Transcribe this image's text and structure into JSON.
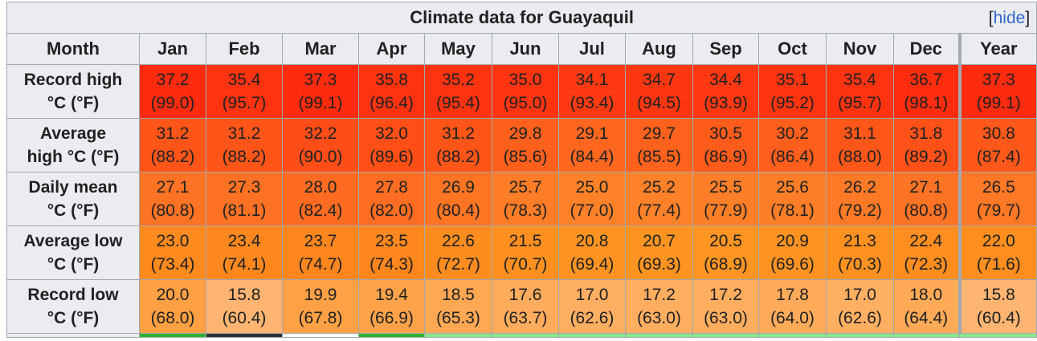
{
  "table": {
    "title": "Climate data for Guayaquil",
    "hide_bracket_open": "[",
    "hide_label": "hide",
    "hide_bracket_close": "]",
    "header_label": "Month",
    "months": [
      "Jan",
      "Feb",
      "Mar",
      "Apr",
      "May",
      "Jun",
      "Jul",
      "Aug",
      "Sep",
      "Oct",
      "Nov",
      "Dec",
      "Year"
    ],
    "rows": [
      {
        "label_line1": "Record high",
        "label_line2": "°C (°F)",
        "c": [
          "37.2",
          "35.4",
          "37.3",
          "35.8",
          "35.2",
          "35.0",
          "34.1",
          "34.7",
          "34.4",
          "35.1",
          "35.4",
          "36.7",
          "37.3"
        ],
        "f": [
          "(99.0)",
          "(95.7)",
          "(99.1)",
          "(96.4)",
          "(95.4)",
          "(95.0)",
          "(93.4)",
          "(94.5)",
          "(93.9)",
          "(95.2)",
          "(95.7)",
          "(98.1)",
          "(99.1)"
        ],
        "colors": [
          "#ff2b0e",
          "#ff3310",
          "#ff2b0e",
          "#ff3310",
          "#ff3310",
          "#ff3511",
          "#ff3a12",
          "#ff3711",
          "#ff3812",
          "#ff3510",
          "#ff3310",
          "#ff2d0e",
          "#ff2b0e"
        ]
      },
      {
        "label_line1": "Average",
        "label_line2": "high °C (°F)",
        "c": [
          "31.2",
          "31.2",
          "32.2",
          "32.0",
          "31.2",
          "29.8",
          "29.1",
          "29.7",
          "30.5",
          "30.2",
          "31.1",
          "31.8",
          "30.8"
        ],
        "f": [
          "(88.2)",
          "(88.2)",
          "(90.0)",
          "(89.6)",
          "(88.2)",
          "(85.6)",
          "(84.4)",
          "(85.5)",
          "(86.9)",
          "(86.4)",
          "(88.0)",
          "(89.2)",
          "(87.4)"
        ],
        "colors": [
          "#ff5519",
          "#ff5519",
          "#ff4d17",
          "#ff4f17",
          "#ff5519",
          "#ff611d",
          "#ff671f",
          "#ff621d",
          "#ff5b1b",
          "#ff5e1c",
          "#ff5619",
          "#ff5118",
          "#ff581a"
        ]
      },
      {
        "label_line1": "Daily mean",
        "label_line2": "°C (°F)",
        "c": [
          "27.1",
          "27.3",
          "28.0",
          "27.8",
          "26.9",
          "25.7",
          "25.0",
          "25.2",
          "25.5",
          "25.6",
          "26.2",
          "27.1",
          "26.5"
        ],
        "f": [
          "(80.8)",
          "(81.1)",
          "(82.4)",
          "(82.0)",
          "(80.4)",
          "(78.3)",
          "(77.0)",
          "(77.4)",
          "(77.9)",
          "(78.1)",
          "(79.2)",
          "(80.8)",
          "(79.7)"
        ],
        "colors": [
          "#ff7324",
          "#ff7223",
          "#ff6c21",
          "#ff6d22",
          "#ff7524",
          "#ff7d27",
          "#ff8229",
          "#ff8128",
          "#ff7f28",
          "#ff7e27",
          "#ff7a26",
          "#ff7324",
          "#ff7825"
        ]
      },
      {
        "label_line1": "Average low",
        "label_line2": "°C (°F)",
        "c": [
          "23.0",
          "23.4",
          "23.7",
          "23.5",
          "22.6",
          "21.5",
          "20.8",
          "20.7",
          "20.5",
          "20.9",
          "21.3",
          "22.4",
          "22.0"
        ],
        "f": [
          "(73.4)",
          "(74.1)",
          "(74.7)",
          "(74.3)",
          "(72.7)",
          "(70.7)",
          "(69.4)",
          "(69.3)",
          "(68.9)",
          "(69.6)",
          "(70.3)",
          "(72.3)",
          "(71.6)"
        ],
        "colors": [
          "#ff8a1e",
          "#ff881e",
          "#ff861d",
          "#ff871d",
          "#ff8c1f",
          "#ff9020",
          "#ff9321",
          "#ff9421",
          "#ff9522",
          "#ff9321",
          "#ff9120",
          "#ff8d1f",
          "#ff8e1f"
        ]
      },
      {
        "label_line1": "Record low",
        "label_line2": "°C (°F)",
        "c": [
          "20.0",
          "15.8",
          "19.9",
          "19.4",
          "18.5",
          "17.6",
          "17.0",
          "17.2",
          "17.2",
          "17.8",
          "17.0",
          "18.0",
          "15.8"
        ],
        "f": [
          "(68.0)",
          "(60.4)",
          "(67.8)",
          "(66.9)",
          "(65.3)",
          "(63.7)",
          "(62.6)",
          "(63.0)",
          "(63.0)",
          "(64.0)",
          "(62.6)",
          "(64.4)",
          "(60.4)"
        ],
        "colors": [
          "#ffa042",
          "#ffb571",
          "#ffa144",
          "#ffa34a",
          "#ffa853",
          "#ffac5c",
          "#ffaf62",
          "#ffae60",
          "#ffae60",
          "#ffab5a",
          "#ffaf62",
          "#ffaa57",
          "#ffb571"
        ]
      }
    ],
    "bottom_colors": [
      "#30b030",
      "#303030",
      "#ffffff",
      "#30b030",
      "#8ae88a",
      "#8ae88a",
      "#8ae88a",
      "#8ae88a",
      "#8ae88a",
      "#8ae88a",
      "#8ae88a",
      "#8ae88a",
      "#8ae88a"
    ]
  }
}
